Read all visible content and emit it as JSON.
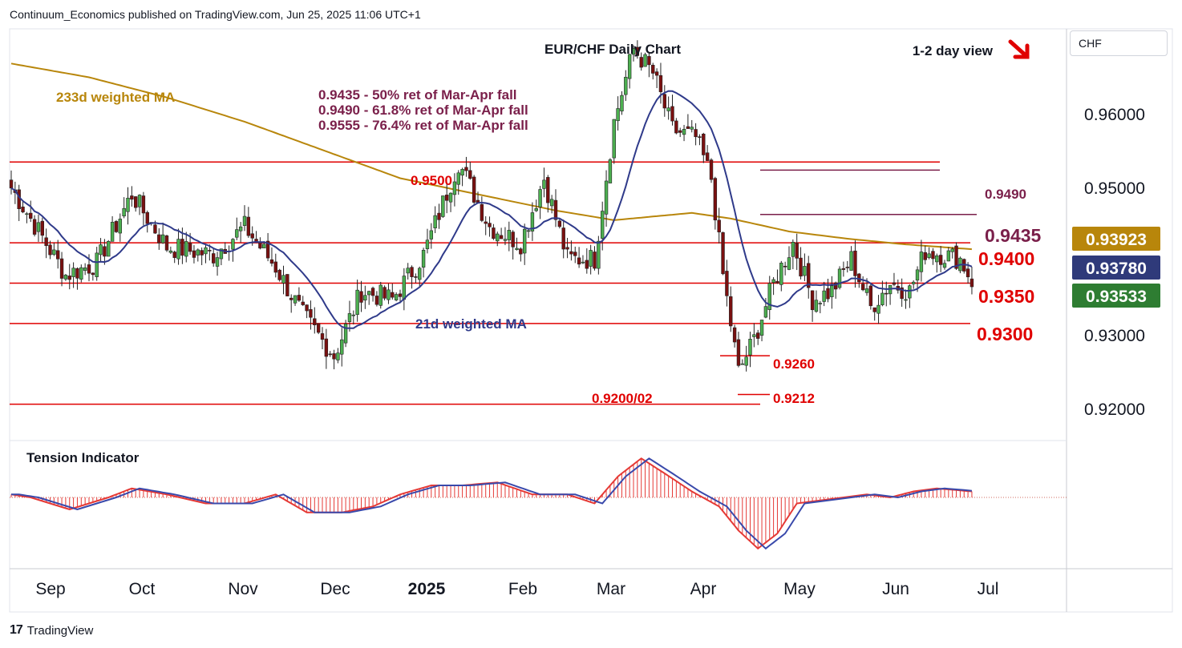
{
  "header": {
    "published": "Continuum_Economics published on TradingView.com, Jun 25, 2025 11:06 UTC+1",
    "currency": "CHF",
    "brand": "TradingView"
  },
  "chart_data": {
    "type": "candlestick",
    "title": "EUR/CHF Daily Chart",
    "view_label": "1-2 day view",
    "view_direction": "down",
    "y_axis": {
      "min": 0.9155,
      "max": 0.9665,
      "ticks": [
        "0.96000",
        "0.95000",
        "0.93000",
        "0.92000"
      ]
    },
    "x_axis": {
      "labels": [
        "Sep",
        "Oct",
        "Nov",
        "Dec",
        "2025",
        "Feb",
        "Mar",
        "Apr",
        "May",
        "Jun",
        "Jul"
      ]
    },
    "price_tags": [
      {
        "label": "0.93923",
        "value": 0.93923,
        "color": "#b8860b"
      },
      {
        "label": "0.93780",
        "value": 0.9378,
        "color": "#2f3a7a"
      },
      {
        "label": "0.93533",
        "value": 0.93533,
        "color": "#2e7d32"
      }
    ],
    "levels": [
      {
        "label": "0.9400",
        "value": 0.94,
        "color": "#e00000"
      },
      {
        "label": "0.9350",
        "value": 0.935,
        "color": "#e00000"
      },
      {
        "label": "0.9300",
        "value": 0.93,
        "color": "#e00000"
      },
      {
        "label": "0.9500",
        "value": 0.95,
        "color": "#e00000"
      },
      {
        "label": "0.9200/02",
        "value": 0.92,
        "color": "#e00000"
      },
      {
        "label": "0.9260",
        "value": 0.926,
        "color": "#e00000"
      },
      {
        "label": "0.9212",
        "value": 0.9212,
        "color": "#e00000"
      },
      {
        "label": "0.9490",
        "value": 0.949,
        "color": "#7a1f4a"
      },
      {
        "label": "0.9435",
        "value": 0.9435,
        "color": "#7a1f4a"
      }
    ],
    "notes": [
      "0.9435 - 50% ret of Mar-Apr fall",
      "0.9490 - 61.8% ret of Mar-Apr fall",
      "0.9555 - 76.4% ret of Mar-Apr fall"
    ],
    "ma_labels": {
      "ma233": "233d weighted MA",
      "ma21": "21d weighted MA"
    },
    "anchors": [
      [
        0,
        0.9468
      ],
      [
        5,
        0.943
      ],
      [
        14,
        0.936
      ],
      [
        22,
        0.9375
      ],
      [
        31,
        0.946
      ],
      [
        40,
        0.9395
      ],
      [
        52,
        0.9385
      ],
      [
        60,
        0.942
      ],
      [
        68,
        0.937
      ],
      [
        75,
        0.931
      ],
      [
        83,
        0.926
      ],
      [
        90,
        0.934
      ],
      [
        98,
        0.933
      ],
      [
        106,
        0.9385
      ],
      [
        115,
        0.95
      ],
      [
        123,
        0.942
      ],
      [
        131,
        0.94
      ],
      [
        137,
        0.948
      ],
      [
        143,
        0.938
      ],
      [
        150,
        0.938
      ],
      [
        155,
        0.955
      ],
      [
        160,
        0.964
      ],
      [
        165,
        0.961
      ],
      [
        170,
        0.954
      ],
      [
        176,
        0.953
      ],
      [
        180,
        0.948
      ],
      [
        183,
        0.936
      ],
      [
        187,
        0.924
      ],
      [
        191,
        0.928
      ],
      [
        196,
        0.935
      ],
      [
        201,
        0.94
      ],
      [
        206,
        0.933
      ],
      [
        211,
        0.934
      ],
      [
        216,
        0.938
      ],
      [
        221,
        0.932
      ],
      [
        226,
        0.935
      ],
      [
        231,
        0.934
      ],
      [
        235,
        0.939
      ],
      [
        240,
        0.9385
      ],
      [
        244,
        0.938
      ],
      [
        247,
        0.9353
      ]
    ],
    "ma233": [
      [
        0,
        0.9622
      ],
      [
        20,
        0.9605
      ],
      [
        40,
        0.958
      ],
      [
        60,
        0.955
      ],
      [
        80,
        0.9515
      ],
      [
        100,
        0.948
      ],
      [
        120,
        0.946
      ],
      [
        140,
        0.944
      ],
      [
        155,
        0.9428
      ],
      [
        175,
        0.9437
      ],
      [
        185,
        0.943
      ],
      [
        200,
        0.9414
      ],
      [
        215,
        0.9405
      ],
      [
        230,
        0.9398
      ],
      [
        247,
        0.9392
      ]
    ],
    "tension_indicator": {
      "label": "Tension Indicator",
      "anchors": [
        [
          0,
          0.05
        ],
        [
          5,
          0.0
        ],
        [
          15,
          -0.2
        ],
        [
          25,
          0.0
        ],
        [
          31,
          0.15
        ],
        [
          40,
          0.05
        ],
        [
          50,
          -0.1
        ],
        [
          60,
          -0.1
        ],
        [
          68,
          0.05
        ],
        [
          76,
          -0.25
        ],
        [
          85,
          -0.25
        ],
        [
          93,
          -0.15
        ],
        [
          100,
          0.05
        ],
        [
          108,
          0.2
        ],
        [
          116,
          0.2
        ],
        [
          125,
          0.25
        ],
        [
          134,
          0.05
        ],
        [
          143,
          0.05
        ],
        [
          150,
          -0.1
        ],
        [
          156,
          0.35
        ],
        [
          162,
          0.65
        ],
        [
          168,
          0.4
        ],
        [
          175,
          0.1
        ],
        [
          182,
          -0.15
        ],
        [
          187,
          -0.55
        ],
        [
          192,
          -0.85
        ],
        [
          197,
          -0.6
        ],
        [
          202,
          -0.1
        ],
        [
          208,
          -0.05
        ],
        [
          214,
          0.0
        ],
        [
          220,
          0.05
        ],
        [
          226,
          0.0
        ],
        [
          232,
          0.1
        ],
        [
          238,
          0.15
        ],
        [
          247,
          0.1
        ]
      ]
    }
  }
}
